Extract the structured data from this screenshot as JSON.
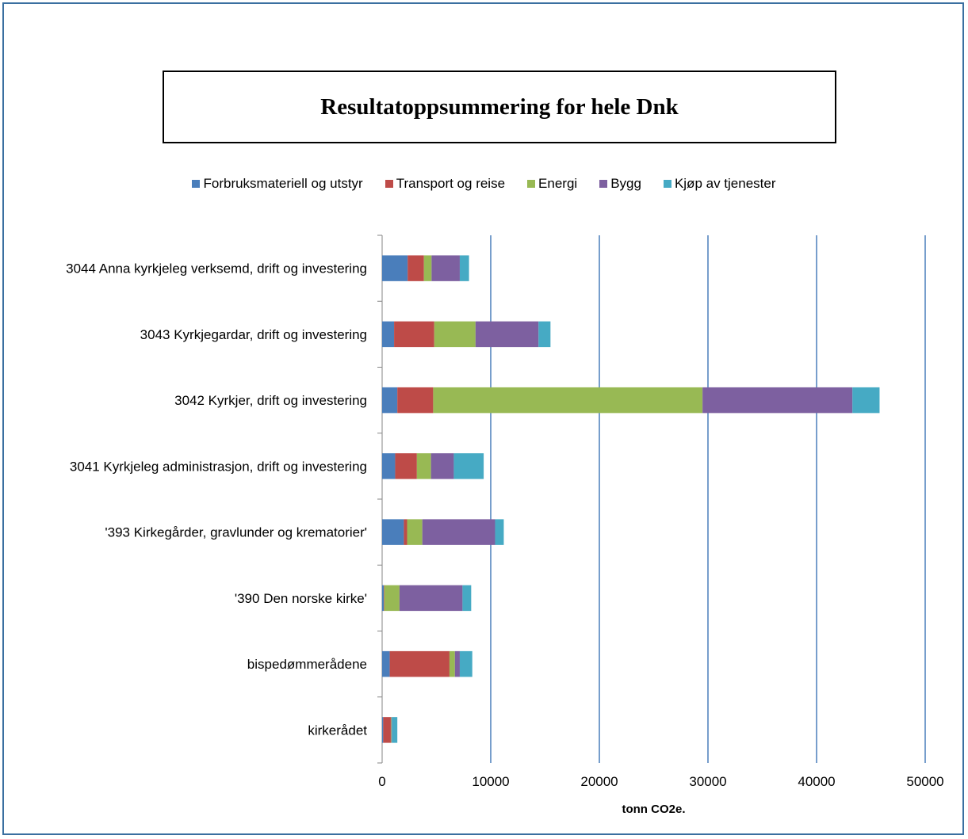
{
  "chart_data": {
    "type": "bar",
    "orientation": "horizontal",
    "stacked": true,
    "title": "Resultatoppsummering for hele Dnk",
    "xlabel": "tonn CO2e.",
    "ylabel": "",
    "xlim": [
      0,
      50000
    ],
    "xticks": [
      "0",
      "10000",
      "20000",
      "30000",
      "40000",
      "50000"
    ],
    "grid": "vertical",
    "legend_position": "top",
    "categories": [
      "3044 Anna kyrkjeleg verksemd, drift og investering",
      "3043 Kyrkjegardar, drift og investering",
      "3042 Kyrkjer, drift og investering",
      "3041 Kyrkjeleg administrasjon, drift og investering",
      "'393 Kirkegårder, gravlunder og krematorier'",
      "'390 Den norske kirke'",
      "bispedømmerådene",
      "kirkerådet"
    ],
    "series": [
      {
        "name": "Forbruksmateriell og utstyr",
        "color": "#4a7ebb",
        "values": [
          2350,
          1100,
          1400,
          1200,
          2000,
          150,
          700,
          100
        ]
      },
      {
        "name": "Transport og reise",
        "color": "#be4b48",
        "values": [
          1500,
          3700,
          3300,
          2000,
          300,
          50,
          5500,
          700
        ]
      },
      {
        "name": "Energi",
        "color": "#98b954",
        "values": [
          700,
          3800,
          24800,
          1300,
          1400,
          1400,
          500,
          50
        ]
      },
      {
        "name": "Bygg",
        "color": "#7d60a0",
        "values": [
          2600,
          5800,
          13800,
          2100,
          6700,
          5800,
          450,
          50
        ]
      },
      {
        "name": "Kjøp av tjenester",
        "color": "#46aac4",
        "values": [
          850,
          1100,
          2500,
          2750,
          800,
          800,
          1150,
          500
        ]
      }
    ]
  }
}
